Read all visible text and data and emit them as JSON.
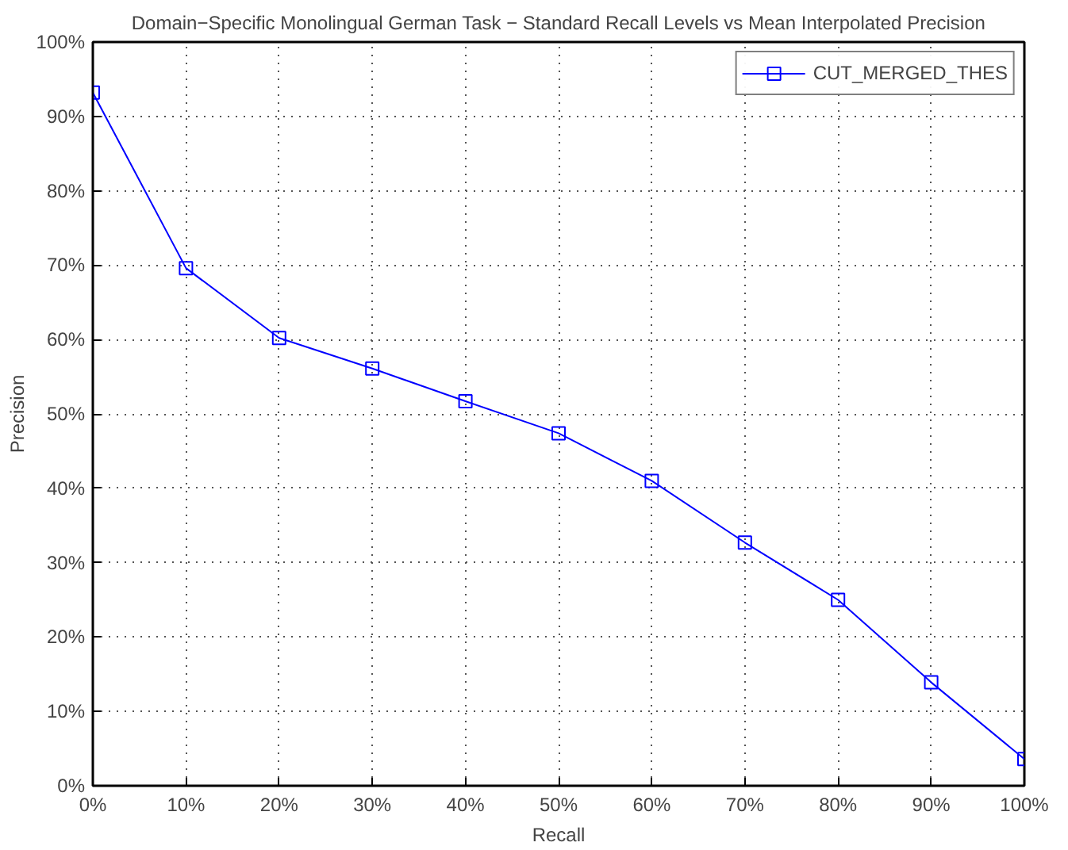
{
  "chart_data": {
    "type": "line",
    "title": "Domain−Specific Monolingual German Task − Standard Recall Levels vs Mean Interpolated Precision",
    "xlabel": "Recall",
    "ylabel": "Precision",
    "x": [
      0,
      10,
      20,
      30,
      40,
      50,
      60,
      70,
      80,
      90,
      100
    ],
    "series": [
      {
        "name": "CUT_MERGED_THES",
        "color": "#0000ff",
        "values": [
          93.2,
          69.6,
          60.2,
          56.1,
          51.7,
          47.4,
          41.0,
          32.7,
          25.0,
          13.9,
          3.6
        ]
      }
    ],
    "xlim": [
      0,
      100
    ],
    "ylim": [
      0,
      100
    ],
    "xticks": [
      {
        "value": 0,
        "label": "0%"
      },
      {
        "value": 10,
        "label": "10%"
      },
      {
        "value": 20,
        "label": "20%"
      },
      {
        "value": 30,
        "label": "30%"
      },
      {
        "value": 40,
        "label": "40%"
      },
      {
        "value": 50,
        "label": "50%"
      },
      {
        "value": 60,
        "label": "60%"
      },
      {
        "value": 70,
        "label": "70%"
      },
      {
        "value": 80,
        "label": "80%"
      },
      {
        "value": 90,
        "label": "90%"
      },
      {
        "value": 100,
        "label": "100%"
      }
    ],
    "yticks": [
      {
        "value": 0,
        "label": "0%"
      },
      {
        "value": 10,
        "label": "10%"
      },
      {
        "value": 20,
        "label": "20%"
      },
      {
        "value": 30,
        "label": "30%"
      },
      {
        "value": 40,
        "label": "40%"
      },
      {
        "value": 50,
        "label": "50%"
      },
      {
        "value": 60,
        "label": "60%"
      },
      {
        "value": 70,
        "label": "70%"
      },
      {
        "value": 80,
        "label": "80%"
      },
      {
        "value": 90,
        "label": "90%"
      },
      {
        "value": 100,
        "label": "100%"
      }
    ],
    "grid": true,
    "legend": "top right",
    "marker": "square",
    "line_style": "solid"
  }
}
